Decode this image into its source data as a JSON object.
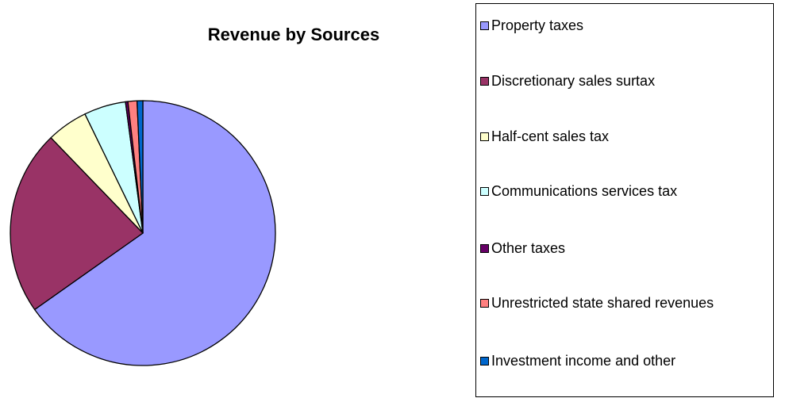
{
  "chart_data": {
    "type": "pie",
    "title": "Revenue by Sources",
    "categories": [
      "Property taxes",
      "Discretionary sales surtax",
      "Half-cent sales tax",
      "Communications services tax",
      "Other taxes",
      "Unrestricted state shared revenues",
      "Investment income and other"
    ],
    "values": [
      65.2,
      22.6,
      5.0,
      5.1,
      0.3,
      1.1,
      0.7
    ],
    "colors": [
      "#9999ff",
      "#993366",
      "#ffffcc",
      "#ccffff",
      "#660066",
      "#ff8080",
      "#0066cc"
    ],
    "legend": "right"
  }
}
